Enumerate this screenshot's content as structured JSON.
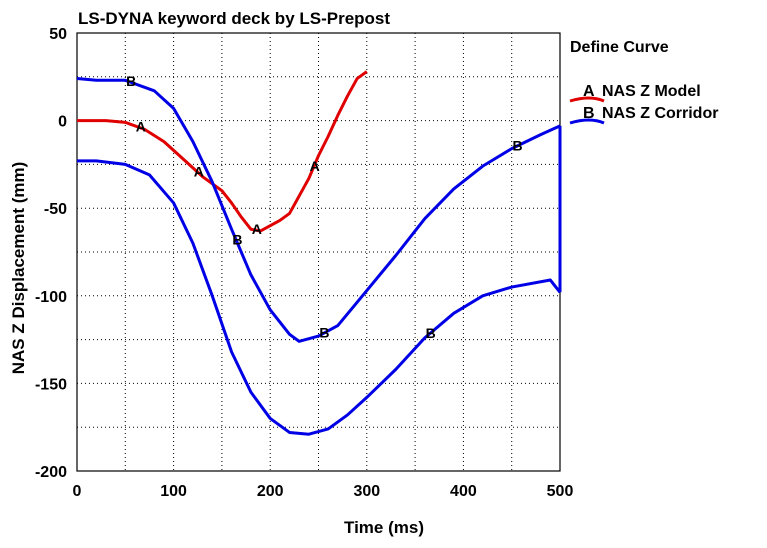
{
  "chart_data": {
    "type": "line",
    "title": "LS-DYNA keyword deck by LS-Prepost",
    "xlabel": "Time (ms)",
    "ylabel": "NAS Z Displacement (mm)",
    "xlim": [
      0,
      500
    ],
    "ylim": [
      -200,
      50
    ],
    "xticks": [
      0,
      100,
      200,
      300,
      400,
      500
    ],
    "yticks": [
      -200,
      -150,
      -100,
      -50,
      0,
      50
    ],
    "grid": true,
    "legend": {
      "title": "Define Curve",
      "position": "top-right",
      "entries": [
        {
          "marker": "A",
          "label": "NAS Z Model",
          "color": "#e00000"
        },
        {
          "marker": "B",
          "label": "NAS Z Corridor",
          "color": "#0000e6"
        }
      ]
    },
    "series": [
      {
        "name": "NAS Z Model",
        "marker": "A",
        "color": "#e00000",
        "points": [
          [
            0,
            0
          ],
          [
            30,
            0
          ],
          [
            50,
            -1
          ],
          [
            70,
            -5
          ],
          [
            90,
            -12
          ],
          [
            110,
            -22
          ],
          [
            130,
            -32
          ],
          [
            150,
            -40
          ],
          [
            160,
            -47
          ],
          [
            170,
            -55
          ],
          [
            180,
            -62
          ],
          [
            190,
            -63
          ],
          [
            200,
            -60
          ],
          [
            210,
            -57
          ],
          [
            220,
            -53
          ],
          [
            230,
            -43
          ],
          [
            240,
            -33
          ],
          [
            250,
            -20
          ],
          [
            260,
            -9
          ],
          [
            270,
            3
          ],
          [
            280,
            14
          ],
          [
            290,
            24
          ],
          [
            300,
            28
          ]
        ],
        "marker_x": [
          65,
          125,
          185,
          245
        ]
      },
      {
        "name": "NAS Z Corridor",
        "marker": "B",
        "color": "#0000e6",
        "points": [
          [
            0,
            24
          ],
          [
            20,
            23
          ],
          [
            50,
            23
          ],
          [
            80,
            17
          ],
          [
            100,
            7
          ],
          [
            120,
            -12
          ],
          [
            140,
            -35
          ],
          [
            160,
            -62
          ],
          [
            180,
            -88
          ],
          [
            200,
            -108
          ],
          [
            220,
            -122
          ],
          [
            230,
            -126
          ],
          [
            250,
            -123
          ],
          [
            270,
            -117
          ],
          [
            300,
            -97
          ],
          [
            330,
            -77
          ],
          [
            360,
            -56
          ],
          [
            390,
            -39
          ],
          [
            420,
            -26
          ],
          [
            450,
            -16
          ],
          [
            480,
            -8
          ],
          [
            500,
            -3
          ]
        ],
        "marker_x": [
          55,
          165,
          255,
          455
        ]
      },
      {
        "name": "NAS Z Corridor",
        "marker": "B",
        "color": "#0000e6",
        "points": [
          [
            0,
            -23
          ],
          [
            20,
            -23
          ],
          [
            50,
            -25
          ],
          [
            75,
            -31
          ],
          [
            100,
            -47
          ],
          [
            120,
            -70
          ],
          [
            140,
            -100
          ],
          [
            160,
            -132
          ],
          [
            180,
            -155
          ],
          [
            200,
            -170
          ],
          [
            220,
            -178
          ],
          [
            240,
            -179
          ],
          [
            260,
            -176
          ],
          [
            280,
            -168
          ],
          [
            300,
            -158
          ],
          [
            330,
            -142
          ],
          [
            360,
            -124
          ],
          [
            390,
            -110
          ],
          [
            420,
            -100
          ],
          [
            450,
            -95
          ],
          [
            490,
            -91
          ],
          [
            500,
            -98
          ]
        ],
        "marker_x": [
          365
        ]
      }
    ]
  }
}
